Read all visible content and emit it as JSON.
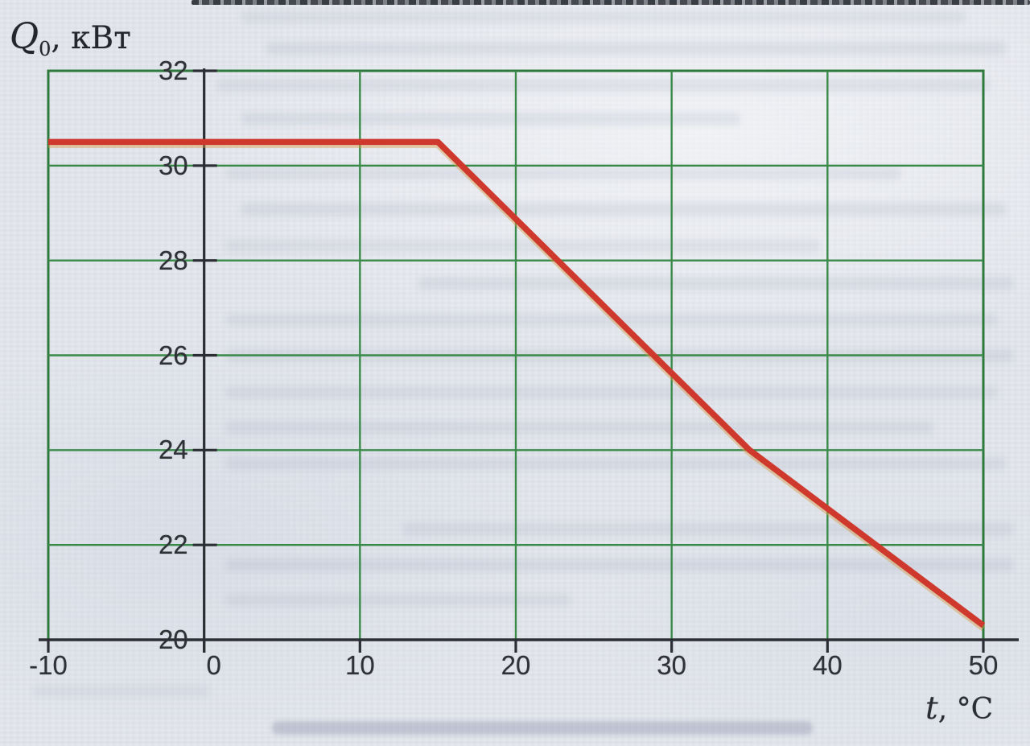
{
  "figure": {
    "y_axis_label": {
      "symbol": "Q",
      "sub": "0",
      "rest": ", кВт"
    },
    "x_axis_label": {
      "symbol": "t",
      "rest": ", °C"
    }
  },
  "chart_data": {
    "type": "line",
    "title": "",
    "xlabel": "t, °C",
    "ylabel": "Q0, кВт",
    "xlim": [
      -10,
      50
    ],
    "ylim": [
      20,
      32
    ],
    "x_ticks": [
      -10,
      0,
      10,
      20,
      30,
      40,
      50
    ],
    "y_ticks": [
      20,
      22,
      24,
      26,
      28,
      30,
      32
    ],
    "grid": true,
    "legend_position": "none",
    "series": [
      {
        "name": "cooling-capacity-vs-outdoor-temperature",
        "color": "#cf382c",
        "points": [
          [
            -10,
            30.5
          ],
          [
            15,
            30.5
          ],
          [
            35,
            24.0
          ],
          [
            50,
            20.3
          ]
        ]
      }
    ]
  },
  "colors": {
    "page_bg": "#e2e5eb",
    "grid_green": "#3a8a4a",
    "border_green": "#2e7a3c",
    "axis_black": "#2b2e33",
    "line_red": "#cf382c",
    "line_fringe": "#d79a45",
    "label_text": "#2e3237"
  }
}
